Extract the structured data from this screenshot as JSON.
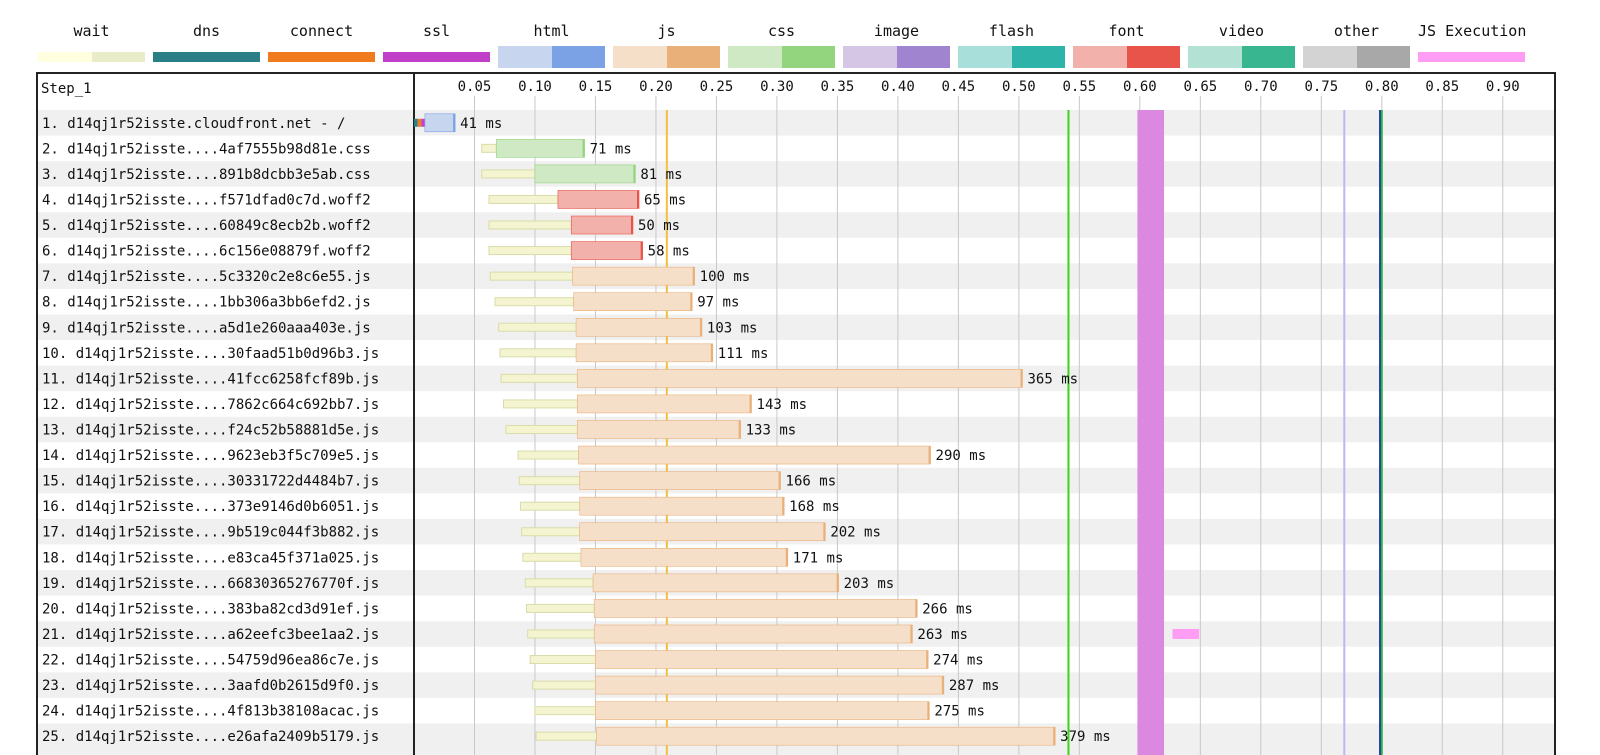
{
  "legend": {
    "items": [
      {
        "name": "wait",
        "colors": [
          "#ffffe0",
          "#e8ecc8"
        ]
      },
      {
        "name": "dns",
        "colors": [
          "#2a7f86",
          "#2a7f86"
        ]
      },
      {
        "name": "connect",
        "colors": [
          "#f07a1e",
          "#f07a1e"
        ]
      },
      {
        "name": "ssl",
        "colors": [
          "#c040c8",
          "#c040c8"
        ]
      },
      {
        "name": "html",
        "colors": [
          "#c7d5ee",
          "#7ca2e6"
        ]
      },
      {
        "name": "js",
        "colors": [
          "#f5dfc9",
          "#eab07a"
        ]
      },
      {
        "name": "css",
        "colors": [
          "#cfe9c4",
          "#93d47e"
        ]
      },
      {
        "name": "image",
        "colors": [
          "#d6c6e6",
          "#a184cf"
        ]
      },
      {
        "name": "flash",
        "colors": [
          "#a8dfdb",
          "#2db3a8"
        ]
      },
      {
        "name": "font",
        "colors": [
          "#f3b1ac",
          "#e8544a"
        ]
      },
      {
        "name": "video",
        "colors": [
          "#b3e1d3",
          "#38b68f"
        ]
      },
      {
        "name": "other",
        "colors": [
          "#d3d3d3",
          "#a8a8a8"
        ]
      },
      {
        "name": "JS Execution",
        "colors": [
          "#ff9cf4",
          "#ff9cf4"
        ]
      }
    ]
  },
  "chart_data": {
    "type": "waterfall",
    "step_label": "Step_1",
    "xlim": [
      0,
      0.944
    ],
    "x_ticks": [
      "0.05",
      "0.10",
      "0.15",
      "0.20",
      "0.25",
      "0.30",
      "0.35",
      "0.40",
      "0.45",
      "0.50",
      "0.55",
      "0.60",
      "0.65",
      "0.70",
      "0.75",
      "0.80",
      "0.85",
      "0.90"
    ],
    "time_unit": "ms",
    "markers": [
      {
        "name": "start-render",
        "time": 0.209,
        "color": "#f2c13a"
      },
      {
        "name": "dom-content-loaded",
        "time": 0.541,
        "color": "#3bd416"
      },
      {
        "name": "lavender-marker",
        "time": 0.769,
        "color": "#b8b8f4"
      },
      {
        "name": "on-load",
        "time": 0.799,
        "color": "#1a2fbf"
      },
      {
        "name": "on-load-end",
        "time": 0.8,
        "color": "#2fb82f"
      }
    ],
    "cpu_band": {
      "start": 0.598,
      "end": 0.62,
      "color": "#da88e0"
    },
    "requests": [
      {
        "label": "1. d14qj1r52isste.cloudfront.net - /",
        "type": "html",
        "wait": [
          0,
          0
        ],
        "connect": [
          0.0,
          0.009
        ],
        "request": [
          0.009,
          0.034
        ],
        "duration": "41 ms",
        "js_exec": []
      },
      {
        "label": "2. d14qj1r52isste....4af7555b98d81e.css",
        "type": "css",
        "wait": [
          0.056,
          0.068
        ],
        "request": [
          0.068,
          0.141
        ],
        "duration": "71 ms",
        "js_exec": []
      },
      {
        "label": "3. d14qj1r52isste....891b8dcbb3e5ab.css",
        "type": "css",
        "wait": [
          0.056,
          0.1
        ],
        "request": [
          0.1,
          0.183
        ],
        "duration": "81 ms",
        "js_exec": []
      },
      {
        "label": "4. d14qj1r52isste....f571dfad0c7d.woff2",
        "type": "font",
        "wait": [
          0.062,
          0.119
        ],
        "request": [
          0.119,
          0.186
        ],
        "duration": "65 ms",
        "js_exec": []
      },
      {
        "label": "5. d14qj1r52isste....60849c8ecb2b.woff2",
        "type": "font",
        "wait": [
          0.062,
          0.13
        ],
        "request": [
          0.13,
          0.181
        ],
        "duration": "50 ms",
        "js_exec": []
      },
      {
        "label": "6. d14qj1r52isste....6c156e08879f.woff2",
        "type": "font",
        "wait": [
          0.062,
          0.13
        ],
        "request": [
          0.13,
          0.189
        ],
        "duration": "58 ms",
        "js_exec": []
      },
      {
        "label": "7. d14qj1r52isste....5c3320c2e8c6e55.js",
        "type": "js",
        "wait": [
          0.063,
          0.131
        ],
        "request": [
          0.131,
          0.232
        ],
        "duration": "100 ms",
        "js_exec": []
      },
      {
        "label": "8. d14qj1r52isste....1bb306a3bb6efd2.js",
        "type": "js",
        "wait": [
          0.067,
          0.132
        ],
        "request": [
          0.132,
          0.23
        ],
        "duration": "97 ms",
        "js_exec": []
      },
      {
        "label": "9. d14qj1r52isste....a5d1e260aaa403e.js",
        "type": "js",
        "wait": [
          0.07,
          0.134
        ],
        "request": [
          0.134,
          0.238
        ],
        "duration": "103 ms",
        "js_exec": []
      },
      {
        "label": "10. d14qj1r52isste....30faad51b0d96b3.js",
        "type": "js",
        "wait": [
          0.071,
          0.134
        ],
        "request": [
          0.134,
          0.247
        ],
        "duration": "111 ms",
        "js_exec": []
      },
      {
        "label": "11. d14qj1r52isste....41fcc6258fcf89b.js",
        "type": "js",
        "wait": [
          0.072,
          0.135
        ],
        "request": [
          0.135,
          0.503
        ],
        "duration": "365 ms",
        "js_exec": []
      },
      {
        "label": "12. d14qj1r52isste....7862c664c692bb7.js",
        "type": "js",
        "wait": [
          0.074,
          0.135
        ],
        "request": [
          0.135,
          0.279
        ],
        "duration": "143 ms",
        "js_exec": []
      },
      {
        "label": "13. d14qj1r52isste....f24c52b58881d5e.js",
        "type": "js",
        "wait": [
          0.076,
          0.135
        ],
        "request": [
          0.135,
          0.27
        ],
        "duration": "133 ms",
        "js_exec": []
      },
      {
        "label": "14. d14qj1r52isste....9623eb3f5c709e5.js",
        "type": "js",
        "wait": [
          0.086,
          0.136
        ],
        "request": [
          0.136,
          0.427
        ],
        "duration": "290 ms",
        "js_exec": []
      },
      {
        "label": "15. d14qj1r52isste....30331722d4484b7.js",
        "type": "js",
        "wait": [
          0.087,
          0.137
        ],
        "request": [
          0.137,
          0.303
        ],
        "duration": "166 ms",
        "js_exec": []
      },
      {
        "label": "16. d14qj1r52isste....373e9146d0b6051.js",
        "type": "js",
        "wait": [
          0.088,
          0.137
        ],
        "request": [
          0.137,
          0.306
        ],
        "duration": "168 ms",
        "js_exec": []
      },
      {
        "label": "17. d14qj1r52isste....9b519c044f3b882.js",
        "type": "js",
        "wait": [
          0.089,
          0.137
        ],
        "request": [
          0.137,
          0.34
        ],
        "duration": "202 ms",
        "js_exec": []
      },
      {
        "label": "18. d14qj1r52isste....e83ca45f371a025.js",
        "type": "js",
        "wait": [
          0.09,
          0.138
        ],
        "request": [
          0.138,
          0.309
        ],
        "duration": "171 ms",
        "js_exec": []
      },
      {
        "label": "19. d14qj1r52isste....66830365276770f.js",
        "type": "js",
        "wait": [
          0.092,
          0.148
        ],
        "request": [
          0.148,
          0.351
        ],
        "duration": "203 ms",
        "js_exec": []
      },
      {
        "label": "20. d14qj1r52isste....383ba82cd3d91ef.js",
        "type": "js",
        "wait": [
          0.093,
          0.149
        ],
        "request": [
          0.149,
          0.416
        ],
        "duration": "266 ms",
        "js_exec": []
      },
      {
        "label": "21. d14qj1r52isste....a62eefc3bee1aa2.js",
        "type": "js",
        "wait": [
          0.094,
          0.149
        ],
        "request": [
          0.149,
          0.412
        ],
        "duration": "263 ms",
        "js_exec": [
          [
            0.627,
            0.649
          ]
        ]
      },
      {
        "label": "22. d14qj1r52isste....54759d96ea86c7e.js",
        "type": "js",
        "wait": [
          0.096,
          0.15
        ],
        "request": [
          0.15,
          0.425
        ],
        "duration": "274 ms",
        "js_exec": []
      },
      {
        "label": "23. d14qj1r52isste....3aafd0b2615d9f0.js",
        "type": "js",
        "wait": [
          0.098,
          0.15
        ],
        "request": [
          0.15,
          0.438
        ],
        "duration": "287 ms",
        "js_exec": []
      },
      {
        "label": "24. d14qj1r52isste....4f813b38108acac.js",
        "type": "js",
        "wait": [
          0.1,
          0.15
        ],
        "request": [
          0.15,
          0.426
        ],
        "duration": "275 ms",
        "js_exec": []
      },
      {
        "label": "25. d14qj1r52isste....e26afa2409b5179.js",
        "type": "js",
        "wait": [
          0.101,
          0.151
        ],
        "request": [
          0.151,
          0.53
        ],
        "duration": "379 ms",
        "js_exec": []
      }
    ]
  }
}
